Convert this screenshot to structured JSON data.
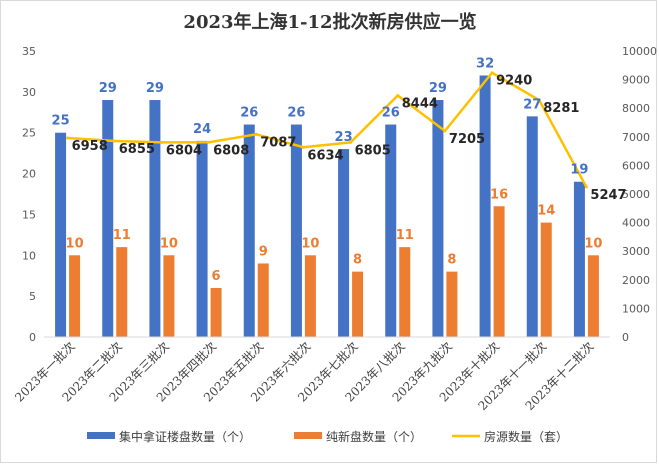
{
  "chart_data": {
    "type": "bar",
    "title": "2023年上海1-12批次新房供应一览",
    "categories": [
      "2023年一批次",
      "2023年二批次",
      "2023年三批次",
      "2023年四批次",
      "2023年五批次",
      "2023年六批次",
      "2023年七批次",
      "2023年八批次",
      "2023年九批次",
      "2023年十批次",
      "2023年十一批次",
      "2023年十二批次"
    ],
    "series": [
      {
        "name": "集中拿证楼盘数量（个）",
        "type": "bar",
        "axis": "left",
        "color": "#4472C4",
        "values": [
          25,
          29,
          29,
          24,
          26,
          26,
          23,
          26,
          29,
          32,
          27,
          19
        ]
      },
      {
        "name": "纯新盘数量（个）",
        "type": "bar",
        "axis": "left",
        "color": "#ED7D31",
        "values": [
          10,
          11,
          10,
          6,
          9,
          10,
          8,
          11,
          8,
          16,
          14,
          10
        ]
      },
      {
        "name": "房源数量（套）",
        "type": "line",
        "axis": "right",
        "color": "#FFC000",
        "values": [
          6958,
          6855,
          6804,
          6808,
          7087,
          6634,
          6805,
          8444,
          7205,
          9240,
          8281,
          5247
        ]
      }
    ],
    "y_left": {
      "min": 0,
      "max": 35,
      "step": 5,
      "ticks": [
        "0",
        "5",
        "10",
        "15",
        "20",
        "25",
        "30",
        "35"
      ]
    },
    "y_right": {
      "min": 0,
      "max": 10000,
      "step": 1000,
      "ticks": [
        "0",
        "1000",
        "2000",
        "3000",
        "4000",
        "5000",
        "6000",
        "7000",
        "8000",
        "9000",
        "10000"
      ]
    },
    "legend_position": "bottom"
  }
}
